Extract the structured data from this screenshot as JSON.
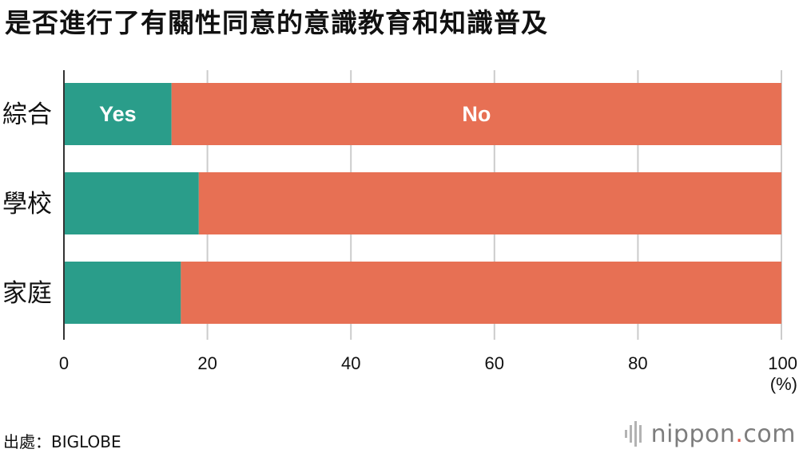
{
  "chart_data": {
    "type": "bar",
    "stacked": true,
    "orientation": "horizontal",
    "title": "是否進行了有關性同意的意識教育和知識普及",
    "categories": [
      "綜合",
      "學校",
      "家庭"
    ],
    "series": [
      {
        "name": "Yes",
        "values": [
          15.0,
          18.8,
          16.3
        ],
        "color": "#2a9d8a"
      },
      {
        "name": "No",
        "values": [
          85.0,
          81.2,
          83.7
        ],
        "color": "#e77054"
      }
    ],
    "xlim": [
      0,
      100
    ],
    "xticks": [
      0,
      20,
      40,
      60,
      80,
      100
    ],
    "xunit": "(%)",
    "grid": true
  },
  "footer": {
    "source": "出處：BIGLOBE",
    "brand_name": "nippon",
    "brand_dot": ".",
    "brand_tld": "com",
    "brand_icon": "nippon-logo-icon"
  }
}
